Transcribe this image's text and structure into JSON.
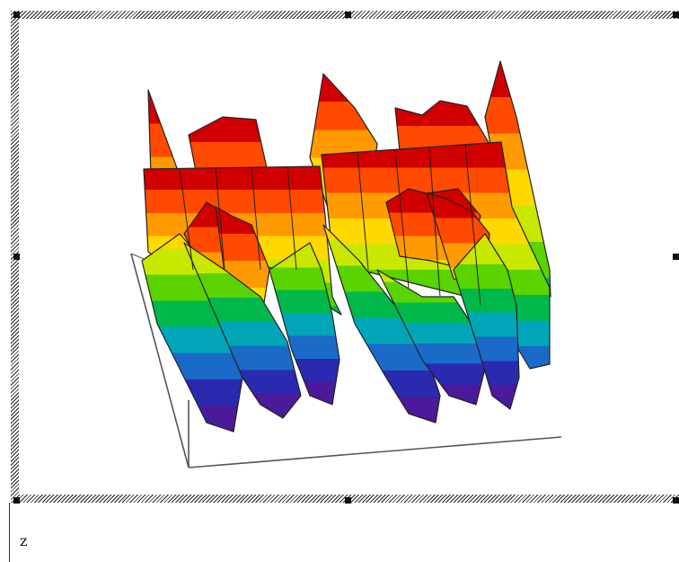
{
  "figure": {
    "title": "",
    "type": "3d-surface",
    "colormap": [
      "#d00000",
      "#ff4a00",
      "#ff9a00",
      "#ffd800",
      "#c8e800",
      "#5ad300",
      "#00b84a",
      "#00a6b8",
      "#1a6ac8",
      "#2a2ab0",
      "#4a1a9a"
    ],
    "edge_color": "#222222",
    "axis_color": "#555555"
  },
  "selection": {
    "hatch_color": "#222222",
    "handles": [
      "top-left",
      "top-center",
      "top-right",
      "middle-left",
      "middle-right",
      "bottom-left",
      "bottom-center",
      "bottom-right"
    ]
  },
  "cell": {
    "label": "z"
  }
}
